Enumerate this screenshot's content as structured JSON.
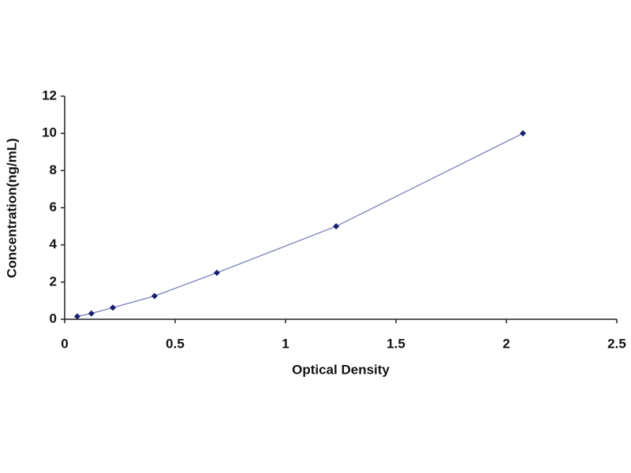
{
  "chart_data": {
    "type": "line",
    "x_label": "Optical Density",
    "y_label": "Concentration(ng/mL)",
    "series": [
      {
        "color": "#1a1f6e",
        "line_color": "#7a7fb8",
        "x": [
          0.057,
          0.121,
          0.218,
          0.407,
          0.689,
          1.229,
          2.075
        ],
        "values": [
          0.156,
          0.312,
          0.625,
          1.25,
          2.5,
          5,
          10
        ]
      }
    ],
    "xlim": [
      0,
      2.5
    ],
    "xticks": [
      0,
      0.5,
      1,
      1.5,
      2,
      2.5
    ],
    "ylim": [
      0,
      12
    ],
    "yticks": [
      0,
      2,
      4,
      6,
      8,
      10,
      12
    ],
    "grid": false
  }
}
